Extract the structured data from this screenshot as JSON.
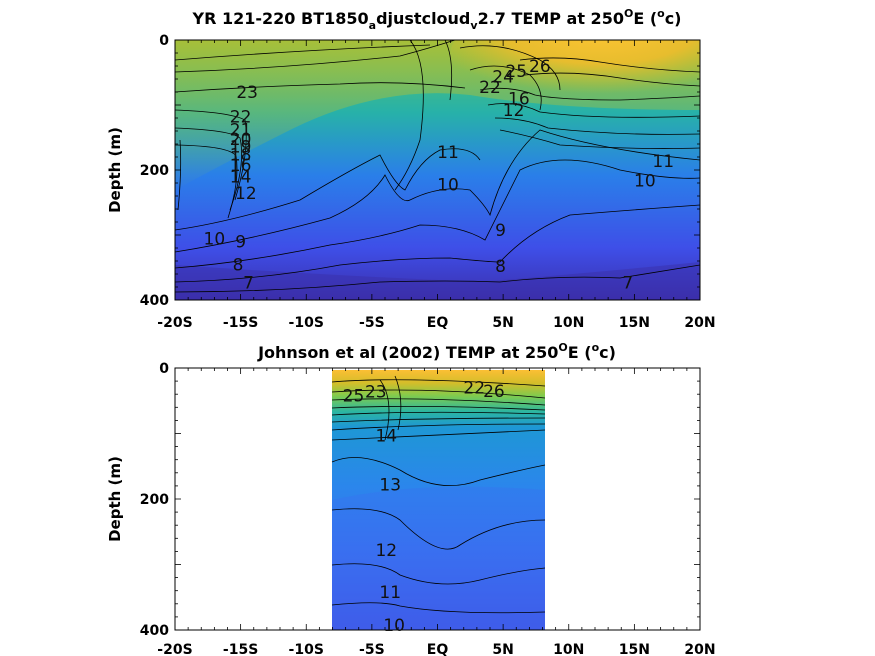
{
  "chart_data": [
    {
      "type": "heatmap",
      "title_parts": [
        "YR 121-220 BT1850",
        "a",
        "djustcloud",
        "v",
        "2.7 TEMP at 250",
        "O",
        "E (",
        "o",
        "c)"
      ],
      "ylabel": "Depth (m)",
      "x_ticks": [
        "-20S",
        "-15S",
        "-10S",
        "-5S",
        "EQ",
        "5N",
        "10N",
        "15N",
        "20N"
      ],
      "x_tick_values": [
        -20,
        -15,
        -10,
        -5,
        0,
        5,
        10,
        15,
        20
      ],
      "y_ticks": [
        "0",
        "200",
        "400"
      ],
      "y_tick_values": [
        0,
        200,
        400
      ],
      "xlim": [
        -20,
        20
      ],
      "ylim": [
        0,
        400
      ],
      "data_xlim": [
        -20,
        20
      ],
      "contour_labels": [
        {
          "text": "23",
          "x": -14.5,
          "y": 80
        },
        {
          "text": "22",
          "x": -15,
          "y": 118
        },
        {
          "text": "21",
          "x": -15,
          "y": 138
        },
        {
          "text": "20",
          "x": -15,
          "y": 152
        },
        {
          "text": "19",
          "x": -15,
          "y": 164
        },
        {
          "text": "18",
          "x": -15,
          "y": 176
        },
        {
          "text": "16",
          "x": -15,
          "y": 192
        },
        {
          "text": "14",
          "x": -15,
          "y": 210
        },
        {
          "text": "12",
          "x": -14.6,
          "y": 235
        },
        {
          "text": "10",
          "x": -17,
          "y": 305
        },
        {
          "text": "9",
          "x": -15,
          "y": 310
        },
        {
          "text": "8",
          "x": -15.2,
          "y": 345
        },
        {
          "text": "7",
          "x": -14.4,
          "y": 373
        },
        {
          "text": "11",
          "x": 0.8,
          "y": 172
        },
        {
          "text": "10",
          "x": 0.8,
          "y": 222
        },
        {
          "text": "9",
          "x": 4.8,
          "y": 292
        },
        {
          "text": "8",
          "x": 4.8,
          "y": 348
        },
        {
          "text": "7",
          "x": 14.5,
          "y": 373
        },
        {
          "text": "11",
          "x": 17.2,
          "y": 186
        },
        {
          "text": "10",
          "x": 15.8,
          "y": 216
        },
        {
          "text": "22",
          "x": 4,
          "y": 72
        },
        {
          "text": "24",
          "x": 5,
          "y": 56
        },
        {
          "text": "25",
          "x": 6,
          "y": 48
        },
        {
          "text": "26",
          "x": 7.8,
          "y": 40
        },
        {
          "text": "12",
          "x": 5.8,
          "y": 108
        },
        {
          "text": "16",
          "x": 6.2,
          "y": 90
        }
      ]
    },
    {
      "type": "heatmap",
      "title_parts": [
        "Johnson et al (2002) TEMP at 250",
        "O",
        "E (",
        "o",
        "c)"
      ],
      "ylabel": "Depth (m)",
      "x_ticks": [
        "-20S",
        "-15S",
        "-10S",
        "-5S",
        "EQ",
        "5N",
        "10N",
        "15N",
        "20N"
      ],
      "x_tick_values": [
        -20,
        -15,
        -10,
        -5,
        0,
        5,
        10,
        15,
        20
      ],
      "y_ticks": [
        "0",
        "200",
        "400"
      ],
      "y_tick_values": [
        0,
        200,
        400
      ],
      "xlim": [
        -20,
        20
      ],
      "ylim": [
        0,
        400
      ],
      "data_xlim": [
        -8,
        8.3
      ],
      "contour_labels": [
        {
          "text": "25",
          "x": -6.4,
          "y": 42
        },
        {
          "text": "23",
          "x": -4.7,
          "y": 36
        },
        {
          "text": "22",
          "x": 2.8,
          "y": 30
        },
        {
          "text": "26",
          "x": 4.3,
          "y": 35
        },
        {
          "text": "14",
          "x": -3.9,
          "y": 103
        },
        {
          "text": "13",
          "x": -3.6,
          "y": 178
        },
        {
          "text": "12",
          "x": -3.9,
          "y": 278
        },
        {
          "text": "11",
          "x": -3.6,
          "y": 342
        },
        {
          "text": "10",
          "x": -3.3,
          "y": 392
        }
      ]
    }
  ]
}
